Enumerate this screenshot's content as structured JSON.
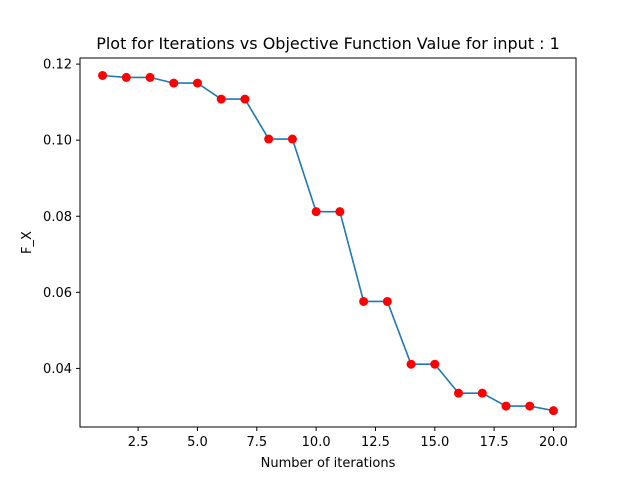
{
  "chart_data": {
    "type": "line",
    "title": "Plot for Iterations vs Objective Function Value for input : 1",
    "xlabel": "Number of iterations",
    "ylabel": "F_X",
    "xlim": [
      0.05,
      20.95
    ],
    "ylim": [
      0.0246,
      0.1216
    ],
    "x_ticks": [
      2.5,
      5.0,
      7.5,
      10.0,
      12.5,
      15.0,
      17.5,
      20.0
    ],
    "x_tick_labels": [
      "2.5",
      "5.0",
      "7.5",
      "10.0",
      "12.5",
      "15.0",
      "17.5",
      "20.0"
    ],
    "y_ticks": [
      0.04,
      0.06,
      0.08,
      0.1,
      0.12
    ],
    "y_tick_labels": [
      "0.04",
      "0.06",
      "0.08",
      "0.10",
      "0.12"
    ],
    "grid": false,
    "legend": "none",
    "line_color": "#1f77b4",
    "marker_color": "#ff0000",
    "x": [
      1,
      2,
      3,
      4,
      5,
      6,
      7,
      8,
      9,
      10,
      11,
      12,
      13,
      14,
      15,
      16,
      17,
      18,
      19,
      20
    ],
    "series": [
      {
        "values": [
          0.117,
          0.1165,
          0.1165,
          0.115,
          0.115,
          0.1108,
          0.1108,
          0.1003,
          0.1003,
          0.0812,
          0.0812,
          0.0576,
          0.0576,
          0.0411,
          0.0411,
          0.0335,
          0.0335,
          0.0301,
          0.0301,
          0.0289
        ]
      }
    ]
  }
}
